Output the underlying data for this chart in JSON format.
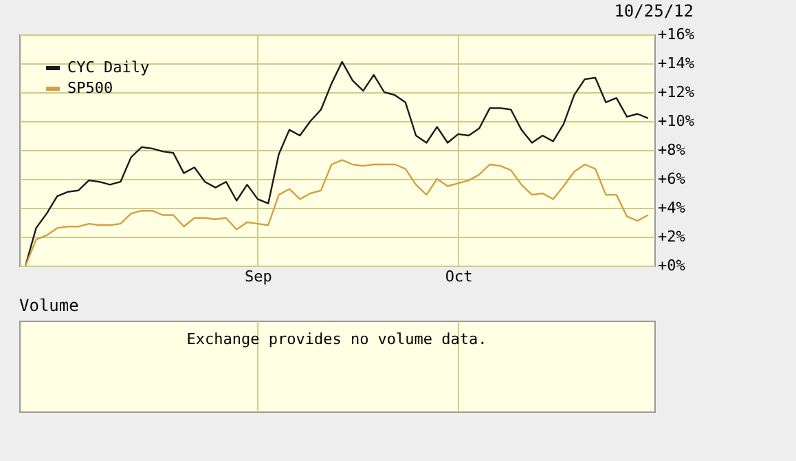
{
  "chart_data": [
    {
      "type": "line",
      "subtitle": "10/25/12",
      "categories": [
        null,
        null,
        null,
        null,
        null,
        null,
        null,
        null,
        null,
        null,
        null,
        null,
        null,
        null,
        null,
        null,
        null,
        null,
        null,
        null,
        null,
        null,
        "Sep",
        null,
        null,
        null,
        null,
        null,
        null,
        null,
        null,
        null,
        null,
        null,
        null,
        null,
        null,
        null,
        null,
        null,
        null,
        "Oct",
        null,
        null,
        null,
        null,
        null,
        null,
        null,
        null,
        null,
        null,
        null,
        null,
        null,
        null,
        null,
        null,
        null,
        null
      ],
      "series": [
        {
          "name": "CYC Daily",
          "color": "#1a1a1a",
          "values": [
            0,
            2.6,
            3.6,
            4.8,
            5.1,
            5.2,
            5.9,
            5.8,
            5.6,
            5.8,
            7.5,
            8.2,
            8.1,
            7.9,
            7.8,
            6.4,
            6.8,
            5.8,
            5.4,
            5.8,
            4.5,
            5.6,
            4.6,
            4.3,
            7.7,
            9.4,
            9.0,
            10.0,
            10.8,
            12.6,
            14.1,
            12.8,
            12.1,
            13.2,
            12.0,
            11.8,
            11.3,
            9.0,
            8.5,
            9.6,
            8.5,
            9.1,
            9.0,
            9.5,
            10.9,
            10.9,
            10.8,
            9.4,
            8.5,
            9.0,
            8.6,
            9.8,
            11.8,
            12.9,
            13.0,
            11.3,
            11.6,
            10.3,
            10.5,
            10.2
          ]
        },
        {
          "name": "SP500",
          "color": "#d4a040",
          "values": [
            0,
            1.8,
            2.1,
            2.6,
            2.7,
            2.7,
            2.9,
            2.8,
            2.8,
            2.9,
            3.6,
            3.8,
            3.8,
            3.5,
            3.5,
            2.7,
            3.3,
            3.3,
            3.2,
            3.3,
            2.5,
            3.0,
            2.9,
            2.8,
            4.9,
            5.3,
            4.6,
            5.0,
            5.2,
            7.0,
            7.3,
            7.0,
            6.9,
            7.0,
            7.0,
            7.0,
            6.7,
            5.6,
            4.9,
            6.0,
            5.5,
            5.7,
            5.9,
            6.3,
            7.0,
            6.9,
            6.6,
            5.6,
            4.9,
            5.0,
            4.6,
            5.5,
            6.5,
            7.0,
            6.7,
            4.9,
            4.9,
            3.4,
            3.1,
            3.5
          ]
        }
      ],
      "ylim": [
        0,
        16
      ],
      "yticks": [
        {
          "value": 0,
          "label": "+0%"
        },
        {
          "value": 2,
          "label": "+2%"
        },
        {
          "value": 4,
          "label": "+4%"
        },
        {
          "value": 6,
          "label": "+6%"
        },
        {
          "value": 8,
          "label": "+8%"
        },
        {
          "value": 10,
          "label": "+10%"
        },
        {
          "value": 12,
          "label": "+12%"
        },
        {
          "value": 14,
          "label": "+14%"
        },
        {
          "value": 16,
          "label": "+16%"
        }
      ],
      "grid": true,
      "legend": "top left"
    },
    {
      "type": "other",
      "title": "Volume",
      "annotations": [
        "Exchange provides no volume data."
      ]
    }
  ]
}
